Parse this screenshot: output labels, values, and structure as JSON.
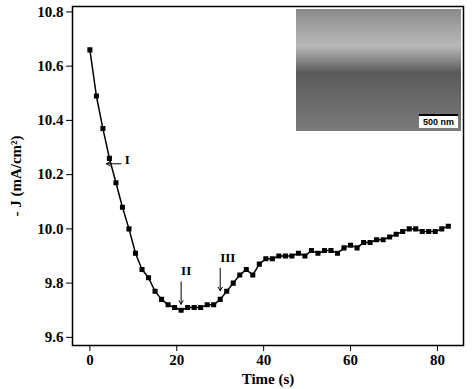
{
  "chart_data": {
    "type": "line",
    "x_label": "Time (s)",
    "y_label": "- J (mA/cm²)",
    "x": [
      0,
      1.5,
      3,
      4.5,
      6,
      7.5,
      9,
      10.5,
      12,
      13.5,
      15,
      16.5,
      18,
      19.5,
      21,
      22.5,
      24,
      25.5,
      27,
      28.5,
      30,
      31.5,
      33,
      34.5,
      36,
      37.5,
      39,
      40.5,
      42,
      43.5,
      45,
      46.5,
      48,
      49.5,
      51,
      52.5,
      54,
      55.5,
      57,
      58.5,
      60,
      61.5,
      63,
      64.5,
      66,
      67.5,
      69,
      70.5,
      72,
      73.5,
      75,
      76.5,
      78,
      79.5,
      81,
      82.5
    ],
    "values": [
      10.66,
      10.49,
      10.37,
      10.26,
      10.17,
      10.08,
      10.0,
      9.91,
      9.85,
      9.82,
      9.77,
      9.74,
      9.72,
      9.71,
      9.7,
      9.71,
      9.71,
      9.71,
      9.72,
      9.72,
      9.74,
      9.77,
      9.8,
      9.83,
      9.85,
      9.83,
      9.87,
      9.89,
      9.89,
      9.9,
      9.9,
      9.9,
      9.91,
      9.9,
      9.92,
      9.91,
      9.92,
      9.92,
      9.91,
      9.93,
      9.94,
      9.93,
      9.95,
      9.95,
      9.96,
      9.96,
      9.97,
      9.98,
      9.99,
      10.0,
      10.0,
      9.99,
      9.99,
      9.99,
      10.0,
      10.01
    ],
    "color": "#000000",
    "marker": "square",
    "line_style": "solid",
    "xlim": [
      -4,
      86
    ],
    "xticks": [
      0,
      20,
      40,
      60,
      80
    ],
    "ylim": [
      9.57,
      10.82
    ],
    "yticks": [
      9.6,
      9.8,
      {
        "value": 10,
        "label": "10.0"
      },
      10.2,
      10.4,
      10.6,
      10.8
    ],
    "annotations": [
      {
        "text": "I",
        "x": 3.5,
        "y": 10.24
      },
      {
        "text": "II",
        "x": 21,
        "y": 9.71
      },
      {
        "text": "III",
        "x": 30,
        "y": 9.76
      }
    ],
    "inset_scale_label": "500 nm"
  }
}
